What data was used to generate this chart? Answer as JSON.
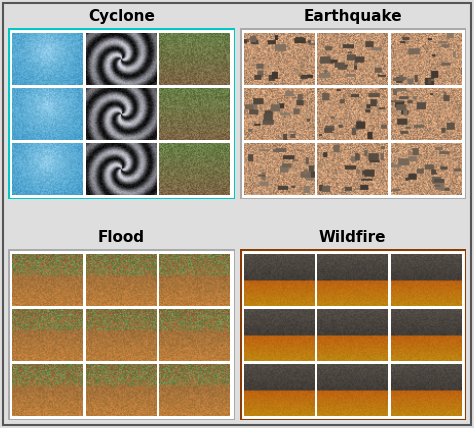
{
  "title_cyclone": "Cyclone",
  "title_earthquake": "Earthquake",
  "title_flood": "Flood",
  "title_wildfire": "Wildfire",
  "border_cyclone": "#00C8C8",
  "border_earthquake": "#AAAAAA",
  "border_flood": "#AAAAAA",
  "border_wildfire": "#8B3A00",
  "background": "#DEDEDE",
  "outer_border": "#555555",
  "title_fontsize": 11,
  "title_fontweight": "bold",
  "figsize": [
    4.74,
    4.28
  ],
  "dpi": 100
}
